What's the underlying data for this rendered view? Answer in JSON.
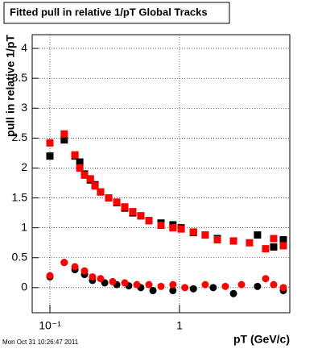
{
  "chart_data": {
    "type": "scatter",
    "title": "Fitted pull in relative 1/pT  Global Tracks",
    "x_label": "pT (GeV/c)",
    "y_label": "pull in relative 1/pT",
    "footer": "Mon Oct 31 10:26:47 2011",
    "xlog": true,
    "grid": true,
    "xlim": [
      0.073,
      7.1
    ],
    "ylim": [
      -0.42,
      4.23
    ],
    "xticks": [
      {
        "value": 0.1,
        "label": "10⁻¹"
      },
      1
    ],
    "yticks": [
      0,
      0.5,
      1,
      1.5,
      2,
      2.5,
      3,
      3.5,
      4
    ],
    "series": [
      {
        "color": "#000000",
        "marker": "square",
        "x": [
          0.1,
          0.129,
          0.156,
          0.17,
          0.185,
          0.205,
          0.223,
          0.246,
          0.284,
          0.328,
          0.378,
          0.436,
          0.503,
          0.581,
          0.72,
          0.89,
          1.03,
          1.28,
          1.58,
          1.96,
          2.61,
          4.0,
          5.33,
          6.33
        ],
        "values": [
          2.2,
          2.47,
          2.2,
          2.1,
          1.9,
          1.8,
          1.72,
          1.6,
          1.5,
          1.42,
          1.33,
          1.25,
          1.2,
          1.12,
          1.08,
          1.05,
          1.0,
          0.92,
          0.88,
          0.82,
          0.78,
          0.88,
          0.68,
          0.8
        ]
      },
      {
        "color": "#ff0000",
        "marker": "square",
        "x": [
          0.1,
          0.129,
          0.156,
          0.17,
          0.185,
          0.205,
          0.223,
          0.246,
          0.284,
          0.328,
          0.378,
          0.436,
          0.503,
          0.581,
          0.72,
          0.89,
          1.03,
          1.28,
          1.58,
          1.96,
          2.61,
          3.47,
          4.62,
          5.33,
          6.33
        ],
        "values": [
          2.42,
          2.57,
          2.22,
          2.0,
          1.88,
          1.82,
          1.7,
          1.6,
          1.5,
          1.43,
          1.35,
          1.27,
          1.2,
          1.12,
          1.04,
          1.0,
          0.98,
          0.93,
          0.88,
          0.8,
          0.78,
          0.75,
          0.65,
          0.82,
          0.7
        ]
      },
      {
        "color": "#000000",
        "marker": "circle",
        "x": [
          0.1,
          0.129,
          0.156,
          0.185,
          0.213,
          0.265,
          0.328,
          0.406,
          0.503,
          0.624,
          0.89,
          1.28,
          1.82,
          2.61,
          4.0,
          6.33
        ],
        "values": [
          0.18,
          0.42,
          0.3,
          0.22,
          0.12,
          0.08,
          0.05,
          0.03,
          0.0,
          -0.05,
          -0.05,
          -0.02,
          0.0,
          -0.1,
          0.02,
          -0.05
        ]
      },
      {
        "color": "#ff0000",
        "marker": "circle",
        "x": [
          0.1,
          0.129,
          0.156,
          0.185,
          0.213,
          0.246,
          0.305,
          0.378,
          0.469,
          0.581,
          0.72,
          0.89,
          1.1,
          1.58,
          2.26,
          3.01,
          4.62,
          5.33,
          6.33
        ],
        "values": [
          0.2,
          0.42,
          0.35,
          0.28,
          0.18,
          0.15,
          0.1,
          0.08,
          0.05,
          0.05,
          0.02,
          0.05,
          0.0,
          0.05,
          0.02,
          0.05,
          0.15,
          0.05,
          0.0
        ]
      }
    ]
  }
}
